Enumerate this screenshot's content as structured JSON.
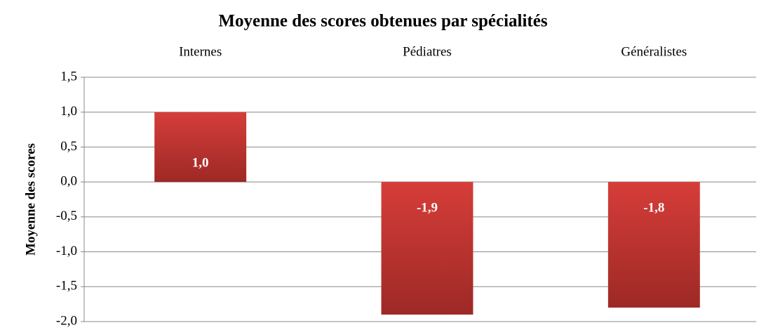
{
  "chart_data": {
    "type": "bar",
    "title": "Moyenne des scores obtenues par spécialités",
    "y_label": "Moyenne des scores",
    "categories": [
      "Internes",
      "Pédiatres",
      "Généralistes"
    ],
    "values": [
      1.0,
      -1.9,
      -1.8
    ],
    "value_labels": [
      "1,0",
      "-1,9",
      "-1,8"
    ],
    "color": "#c9332f",
    "ylim": [
      -2,
      1.5
    ],
    "yticks": [
      {
        "value": 1.5,
        "label": "1,5"
      },
      {
        "value": 1.0,
        "label": "1,0"
      },
      {
        "value": 0.5,
        "label": "0,5"
      },
      {
        "value": 0.0,
        "label": "0,0"
      },
      {
        "value": -0.5,
        "label": "-0,5"
      },
      {
        "value": -1.0,
        "label": "-1,0"
      },
      {
        "value": -1.5,
        "label": "-1,5"
      },
      {
        "value": -2.0,
        "label": "-2,0"
      }
    ],
    "grid": true
  }
}
